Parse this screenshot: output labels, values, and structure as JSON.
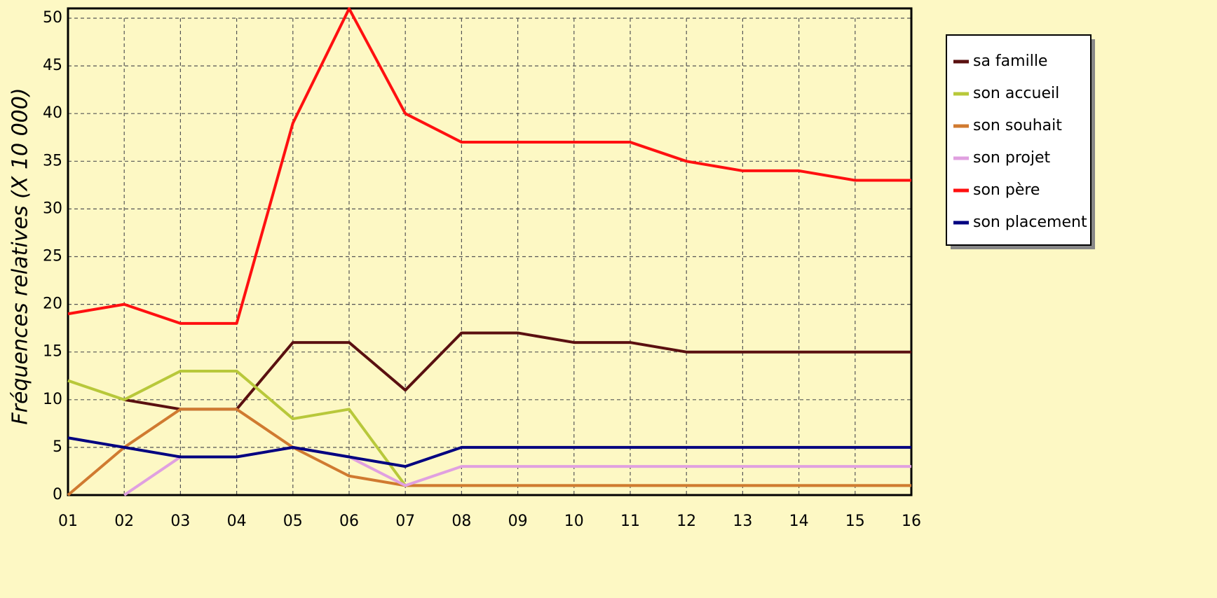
{
  "chart_data": {
    "type": "line",
    "y_label": "Fréquences relatives (X 10 000)",
    "categories": [
      "01",
      "02",
      "03",
      "04",
      "05",
      "06",
      "07",
      "08",
      "09",
      "10",
      "11",
      "12",
      "13",
      "14",
      "15",
      "16"
    ],
    "ylim": [
      0,
      50
    ],
    "yticks": [
      0,
      5,
      10,
      15,
      20,
      25,
      30,
      35,
      40,
      45,
      50
    ],
    "grid": true,
    "legend": "right",
    "series": [
      {
        "name": "sa famille",
        "color": "#5a1010",
        "values": [
          null,
          10,
          9,
          9,
          16,
          16,
          11,
          17,
          17,
          16,
          16,
          15,
          15,
          15,
          15,
          15
        ]
      },
      {
        "name": "son accueil",
        "color": "#b8c83a",
        "values": [
          12,
          10,
          13,
          13,
          8,
          9,
          1,
          1,
          1,
          1,
          1,
          1,
          1,
          1,
          1,
          1
        ]
      },
      {
        "name": "son souhait",
        "color": "#d07a30",
        "values": [
          0,
          5,
          9,
          9,
          5,
          2,
          1,
          1,
          1,
          1,
          1,
          1,
          1,
          1,
          1,
          1
        ]
      },
      {
        "name": "son projet",
        "color": "#e0a0e0",
        "values": [
          null,
          0,
          4,
          4,
          5,
          4,
          1,
          3,
          3,
          3,
          3,
          3,
          3,
          3,
          3,
          3
        ]
      },
      {
        "name": "son père",
        "color": "#ff1010",
        "values": [
          19,
          20,
          18,
          18,
          39,
          51,
          40,
          37,
          37,
          37,
          37,
          35,
          34,
          34,
          33,
          33
        ]
      },
      {
        "name": "son placement",
        "color": "#000080",
        "values": [
          6,
          5,
          4,
          4,
          5,
          4,
          3,
          5,
          5,
          5,
          5,
          5,
          5,
          5,
          5,
          5
        ]
      }
    ]
  }
}
